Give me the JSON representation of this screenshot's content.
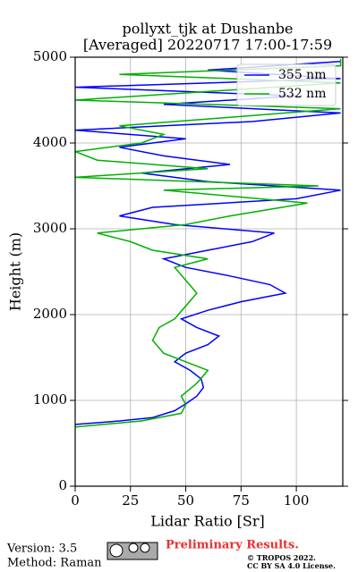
{
  "chart_data": {
    "type": "line",
    "title": "pollyxt_tjk at Dushanbe",
    "subtitle": "[Averaged] 20220717 17:00-17:59",
    "x_label": "Lidar Ratio [Sr]",
    "y_label": "Height (m)",
    "xlim": [
      0,
      121
    ],
    "ylim": [
      0,
      5000
    ],
    "xticks": [
      0,
      25,
      50,
      75,
      100
    ],
    "yticks": [
      0,
      1000,
      2000,
      3000,
      4000,
      5000
    ],
    "grid": true,
    "legend": "upper right",
    "series": [
      {
        "name": "355 nm",
        "color": "#0000ff",
        "x": [
          0,
          20,
          35,
          45,
          50,
          55,
          58,
          57,
          52,
          45,
          50,
          60,
          65,
          55,
          48,
          60,
          75,
          95,
          88,
          70,
          50,
          40,
          60,
          80,
          90,
          45,
          20,
          35,
          100,
          120,
          60,
          30,
          70,
          40,
          20,
          50,
          0,
          80,
          120,
          40,
          100,
          0,
          120,
          60,
          120
        ],
        "y": [
          720,
          760,
          800,
          880,
          960,
          1050,
          1150,
          1250,
          1350,
          1450,
          1550,
          1650,
          1750,
          1850,
          1950,
          2050,
          2150,
          2250,
          2350,
          2450,
          2550,
          2650,
          2750,
          2850,
          2950,
          3050,
          3150,
          3250,
          3350,
          3450,
          3550,
          3650,
          3750,
          3850,
          3950,
          4050,
          4150,
          4250,
          4350,
          4450,
          4550,
          4650,
          4750,
          4850,
          4950
        ]
      },
      {
        "name": "532 nm",
        "color": "#00b000",
        "x": [
          0,
          30,
          48,
          50,
          48,
          55,
          60,
          50,
          40,
          35,
          38,
          45,
          50,
          55,
          50,
          45,
          60,
          35,
          25,
          10,
          50,
          70,
          105,
          40,
          110,
          0,
          60,
          10,
          0,
          30,
          40,
          20,
          70,
          120,
          0,
          60,
          120,
          20,
          120,
          120
        ],
        "y": [
          690,
          760,
          850,
          950,
          1050,
          1200,
          1350,
          1450,
          1550,
          1700,
          1850,
          1950,
          2100,
          2250,
          2400,
          2550,
          2650,
          2750,
          2850,
          2950,
          3050,
          3150,
          3300,
          3450,
          3500,
          3600,
          3700,
          3800,
          3900,
          4000,
          4100,
          4200,
          4300,
          4400,
          4500,
          4600,
          4700,
          4800,
          4900,
          4980
        ]
      }
    ]
  },
  "footer": {
    "version": "Version: 3.5",
    "method": "Method: Raman",
    "notice": "Preliminary Results.",
    "copyright": "© TROPOS 2022.",
    "license": "CC BY SA 4.0 License."
  }
}
